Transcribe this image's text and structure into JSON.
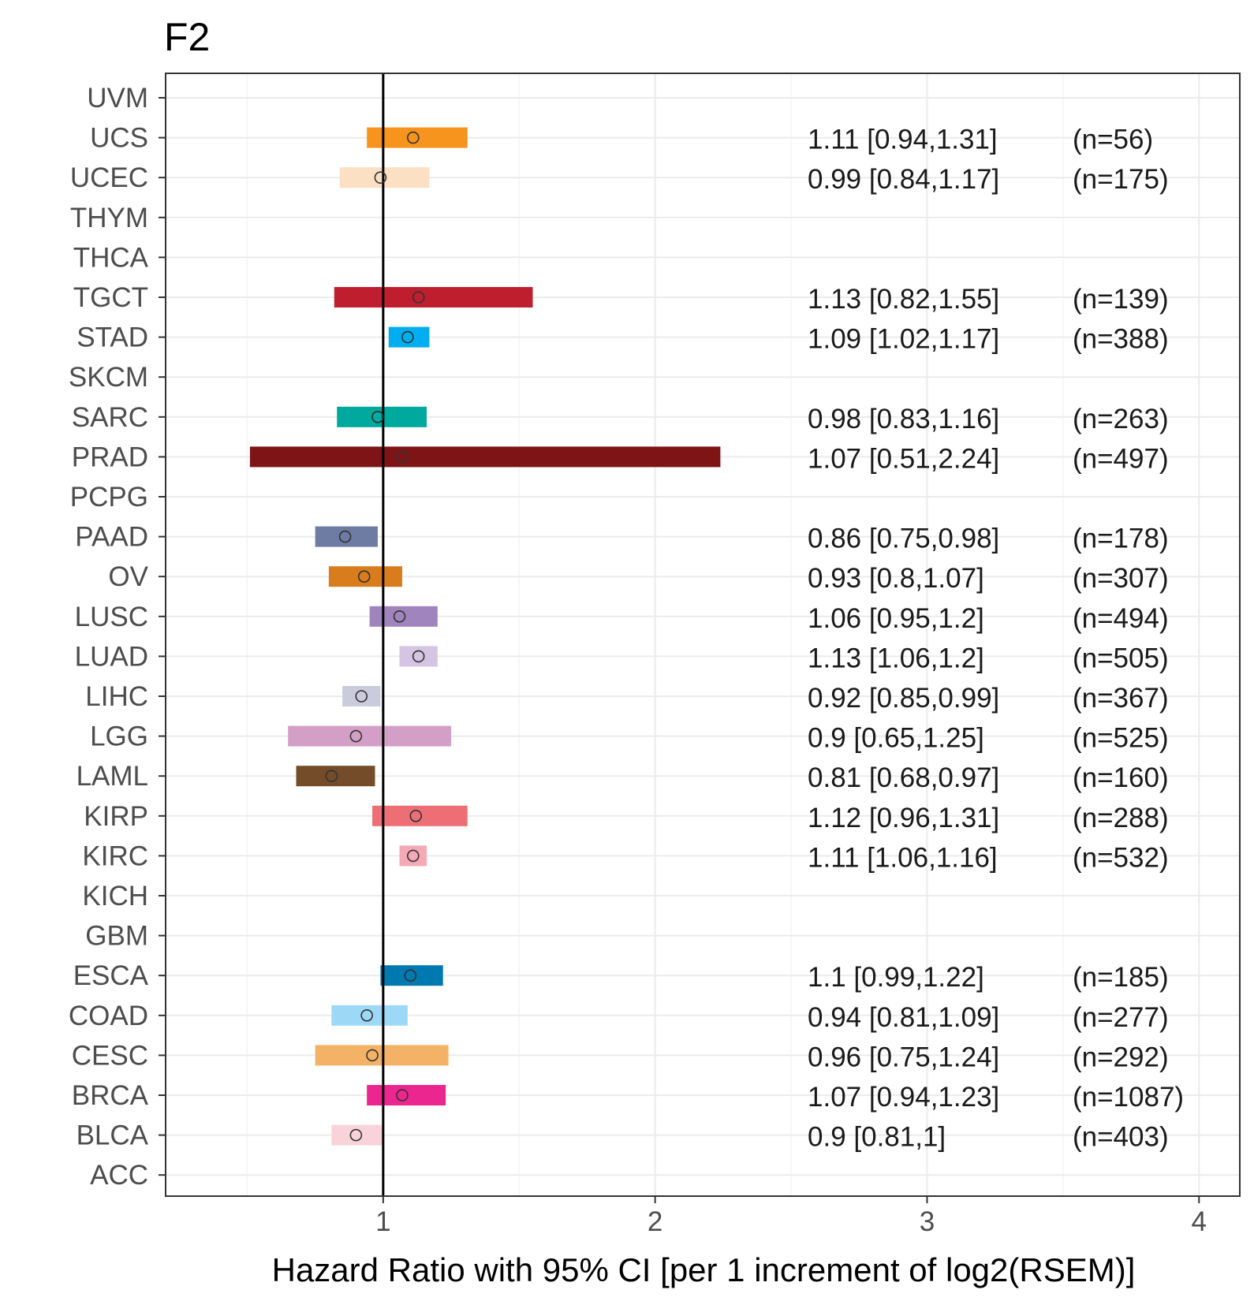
{
  "chart_data": {
    "type": "forest",
    "title": "F2",
    "xlabel": "Hazard Ratio with 95% CI [per 1 increment of log2(RSEM)]",
    "ylabel": "",
    "xlim": [
      0.2,
      4.15
    ],
    "x_ticks": [
      1,
      2,
      3,
      4
    ],
    "x_tick_labels": [
      "1",
      "2",
      "3",
      "4"
    ],
    "reference_line": 1,
    "grid": true,
    "categories": [
      "UVM",
      "UCS",
      "UCEC",
      "THYM",
      "THCA",
      "TGCT",
      "STAD",
      "SKCM",
      "SARC",
      "PRAD",
      "PCPG",
      "PAAD",
      "OV",
      "LUSC",
      "LUAD",
      "LIHC",
      "LGG",
      "LAML",
      "KIRP",
      "KIRC",
      "KICH",
      "GBM",
      "ESCA",
      "COAD",
      "CESC",
      "BRCA",
      "BLCA",
      "ACC"
    ],
    "rows": [
      {
        "label": "UVM"
      },
      {
        "label": "UCS",
        "hr": 1.11,
        "lo": 0.94,
        "hi": 1.31,
        "text": "1.11 [0.94,1.31]",
        "n": "(n=56)",
        "color": "#F7941D"
      },
      {
        "label": "UCEC",
        "hr": 0.99,
        "lo": 0.84,
        "hi": 1.17,
        "text": "0.99 [0.84,1.17]",
        "n": "(n=175)",
        "color": "#FBE0C3"
      },
      {
        "label": "THYM"
      },
      {
        "label": "THCA"
      },
      {
        "label": "TGCT",
        "hr": 1.13,
        "lo": 0.82,
        "hi": 1.55,
        "text": "1.13 [0.82,1.55]",
        "n": "(n=139)",
        "color": "#BE1E2D"
      },
      {
        "label": "STAD",
        "hr": 1.09,
        "lo": 1.02,
        "hi": 1.17,
        "text": "1.09 [1.02,1.17]",
        "n": "(n=388)",
        "color": "#00AEEF"
      },
      {
        "label": "SKCM"
      },
      {
        "label": "SARC",
        "hr": 0.98,
        "lo": 0.83,
        "hi": 1.16,
        "text": "0.98 [0.83,1.16]",
        "n": "(n=263)",
        "color": "#00A99D"
      },
      {
        "label": "PRAD",
        "hr": 1.07,
        "lo": 0.51,
        "hi": 2.24,
        "text": "1.07 [0.51,2.24]",
        "n": "(n=497)",
        "color": "#7E1416"
      },
      {
        "label": "PCPG"
      },
      {
        "label": "PAAD",
        "hr": 0.86,
        "lo": 0.75,
        "hi": 0.98,
        "text": "0.86 [0.75,0.98]",
        "n": "(n=178)",
        "color": "#6E7BA2"
      },
      {
        "label": "OV",
        "hr": 0.93,
        "lo": 0.8,
        "hi": 1.07,
        "text": "0.93 [0.8,1.07]",
        "n": "(n=307)",
        "color": "#D97C1E"
      },
      {
        "label": "LUSC",
        "hr": 1.06,
        "lo": 0.95,
        "hi": 1.2,
        "text": "1.06 [0.95,1.2]",
        "n": "(n=494)",
        "color": "#A084BD"
      },
      {
        "label": "LUAD",
        "hr": 1.13,
        "lo": 1.06,
        "hi": 1.2,
        "text": "1.13 [1.06,1.2]",
        "n": "(n=505)",
        "color": "#D5C4E3"
      },
      {
        "label": "LIHC",
        "hr": 0.92,
        "lo": 0.85,
        "hi": 0.99,
        "text": "0.92 [0.85,0.99]",
        "n": "(n=367)",
        "color": "#CACCDB"
      },
      {
        "label": "LGG",
        "hr": 0.9,
        "lo": 0.65,
        "hi": 1.25,
        "text": "0.9 [0.65,1.25]",
        "n": "(n=525)",
        "color": "#D49FC7"
      },
      {
        "label": "LAML",
        "hr": 0.81,
        "lo": 0.68,
        "hi": 0.97,
        "text": "0.81 [0.68,0.97]",
        "n": "(n=160)",
        "color": "#754C29"
      },
      {
        "label": "KIRP",
        "hr": 1.12,
        "lo": 0.96,
        "hi": 1.31,
        "text": "1.12 [0.96,1.31]",
        "n": "(n=288)",
        "color": "#ED6F75"
      },
      {
        "label": "KIRC",
        "hr": 1.11,
        "lo": 1.06,
        "hi": 1.16,
        "text": "1.11 [1.06,1.16]",
        "n": "(n=532)",
        "color": "#F4A9B5"
      },
      {
        "label": "KICH"
      },
      {
        "label": "GBM"
      },
      {
        "label": "ESCA",
        "hr": 1.1,
        "lo": 0.99,
        "hi": 1.22,
        "text": "1.1 [0.99,1.22]",
        "n": "(n=185)",
        "color": "#0079B0"
      },
      {
        "label": "COAD",
        "hr": 0.94,
        "lo": 0.81,
        "hi": 1.09,
        "text": "0.94 [0.81,1.09]",
        "n": "(n=277)",
        "color": "#9DD9F7"
      },
      {
        "label": "CESC",
        "hr": 0.96,
        "lo": 0.75,
        "hi": 1.24,
        "text": "0.96 [0.75,1.24]",
        "n": "(n=292)",
        "color": "#F4B266"
      },
      {
        "label": "BRCA",
        "hr": 1.07,
        "lo": 0.94,
        "hi": 1.23,
        "text": "1.07 [0.94,1.23]",
        "n": "(n=1087)",
        "color": "#EC268F"
      },
      {
        "label": "BLCA",
        "hr": 0.9,
        "lo": 0.81,
        "hi": 1.0,
        "text": "0.9 [0.81,1]",
        "n": "(n=403)",
        "color": "#F9D3DA"
      },
      {
        "label": "ACC"
      }
    ]
  }
}
